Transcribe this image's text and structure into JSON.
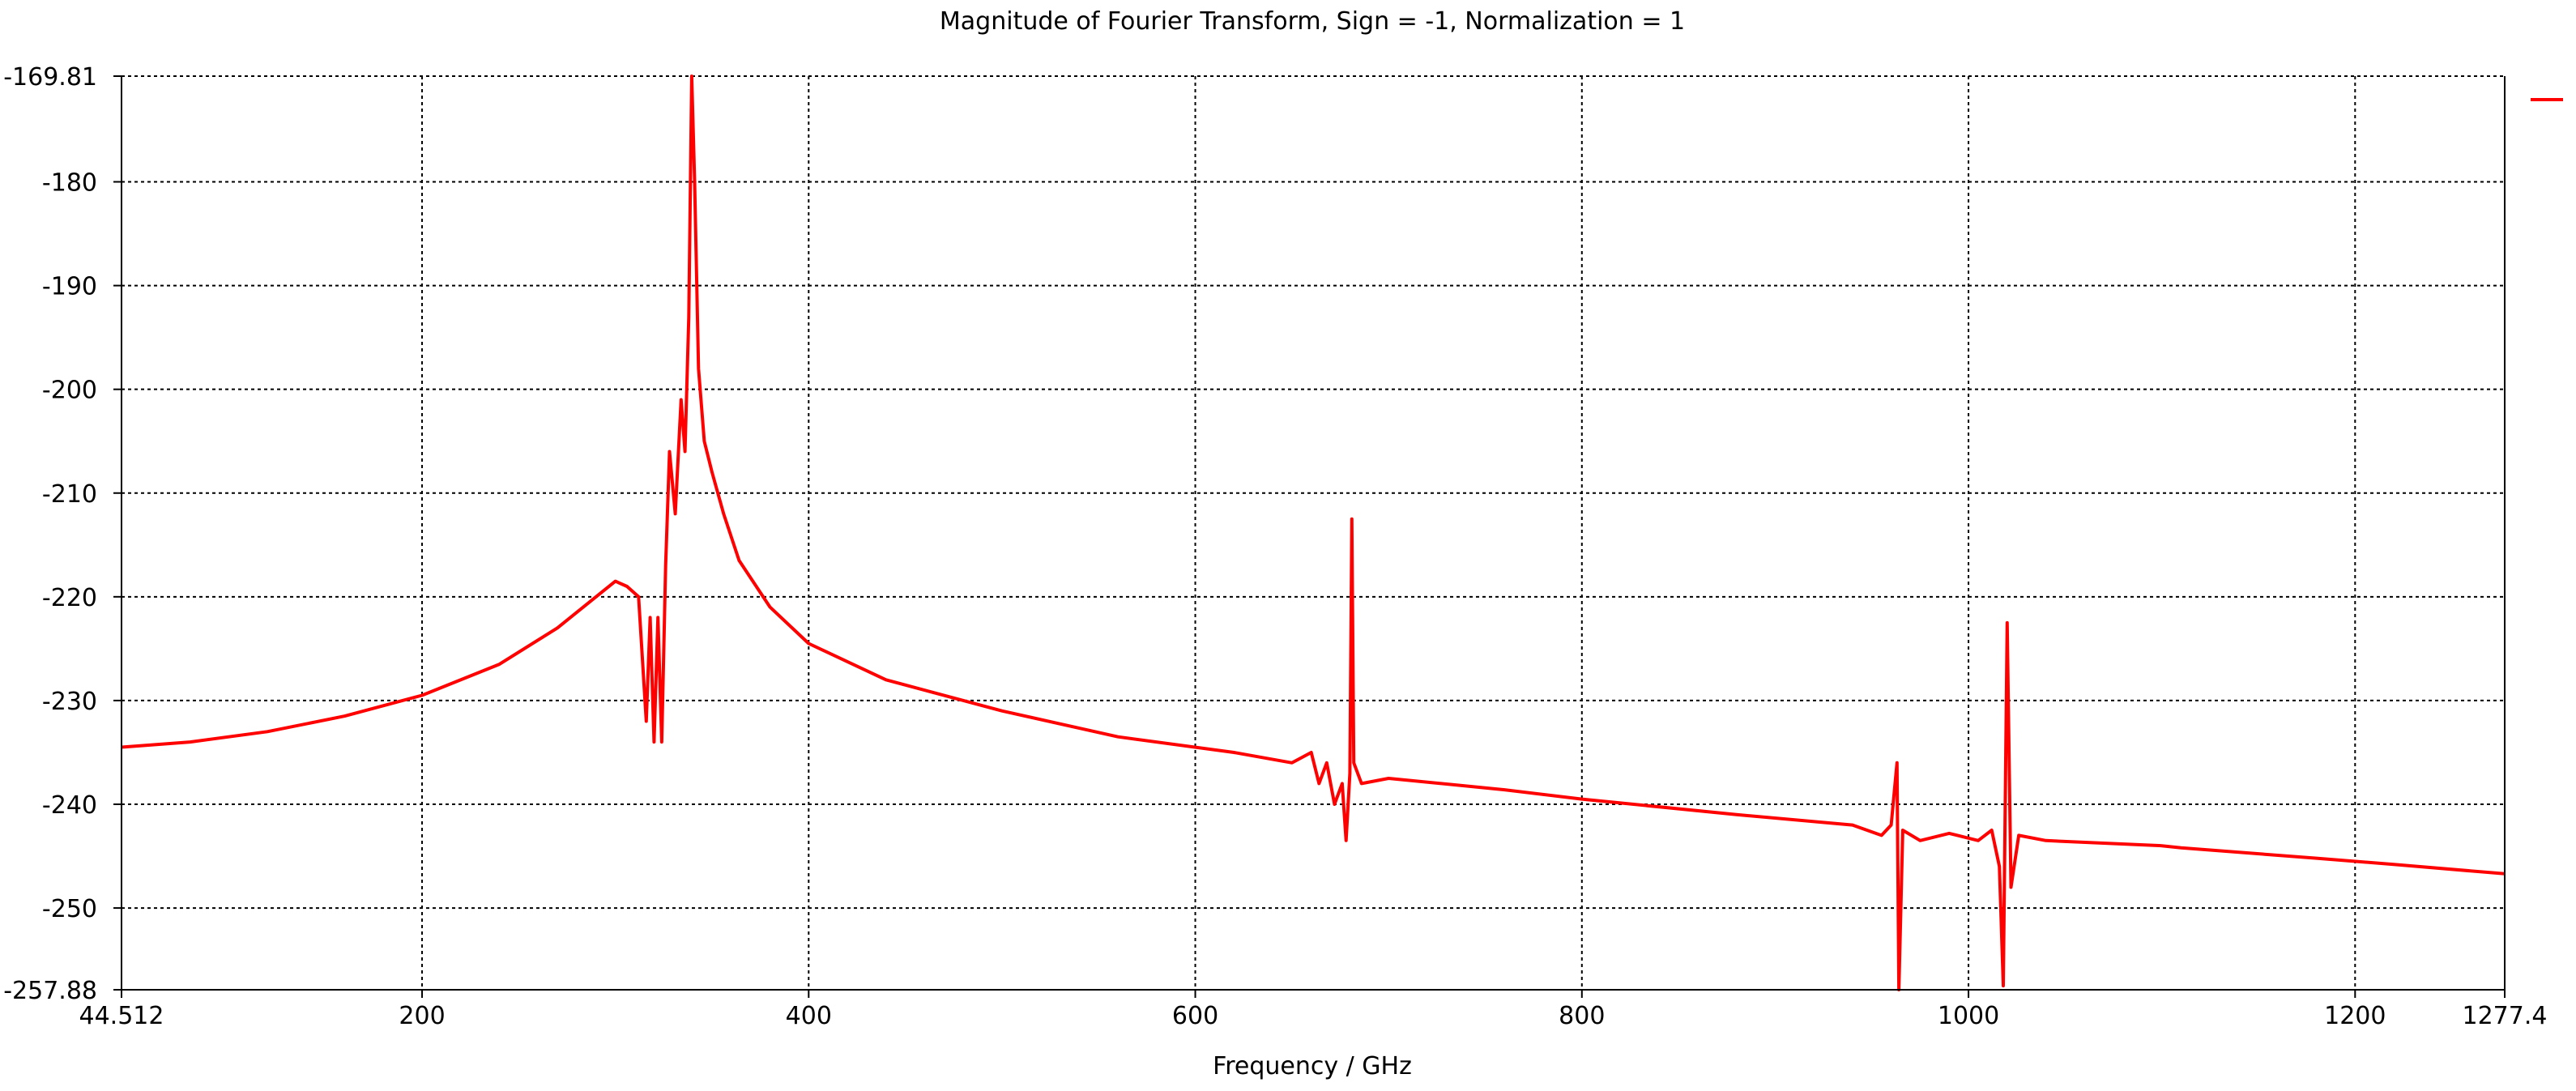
{
  "chart_data": {
    "type": "line",
    "title": "Magnitude of Fourier Transform, Sign = -1, Normalization = 1",
    "xlabel": "Frequency / GHz",
    "ylabel": "",
    "xlim": [
      44.512,
      1277.4
    ],
    "ylim": [
      -257.88,
      -169.81
    ],
    "x_ticks": [
      {
        "value": 44.512,
        "label": "44.512"
      },
      {
        "value": 200,
        "label": "200"
      },
      {
        "value": 400,
        "label": "400"
      },
      {
        "value": 600,
        "label": "600"
      },
      {
        "value": 800,
        "label": "800"
      },
      {
        "value": 1000,
        "label": "1000"
      },
      {
        "value": 1200,
        "label": "1200"
      },
      {
        "value": 1277.4,
        "label": "1277.4"
      }
    ],
    "y_ticks": [
      {
        "value": -169.81,
        "label": "-169.81"
      },
      {
        "value": -180,
        "label": "-180"
      },
      {
        "value": -190,
        "label": "-190"
      },
      {
        "value": -200,
        "label": "-200"
      },
      {
        "value": -210,
        "label": "-210"
      },
      {
        "value": -220,
        "label": "-220"
      },
      {
        "value": -230,
        "label": "-230"
      },
      {
        "value": -240,
        "label": "-240"
      },
      {
        "value": -250,
        "label": "-250"
      },
      {
        "value": -257.88,
        "label": "-257.88"
      }
    ],
    "grid": true,
    "legend": "top-right",
    "series": [
      {
        "color": "#ff0000",
        "points": [
          [
            44.5,
            -234.5
          ],
          [
            80,
            -234.0
          ],
          [
            120,
            -233.0
          ],
          [
            160,
            -231.5
          ],
          [
            200,
            -229.5
          ],
          [
            240,
            -226.5
          ],
          [
            270,
            -223.0
          ],
          [
            290,
            -220.0
          ],
          [
            300,
            -218.5
          ],
          [
            306,
            -219.0
          ],
          [
            312,
            -220.0
          ],
          [
            316,
            -232.0
          ],
          [
            318,
            -222.0
          ],
          [
            320,
            -234.0
          ],
          [
            322,
            -222.0
          ],
          [
            324,
            -234.0
          ],
          [
            326,
            -217.0
          ],
          [
            328,
            -206.0
          ],
          [
            331,
            -212.0
          ],
          [
            334,
            -201.0
          ],
          [
            336,
            -206.0
          ],
          [
            338,
            -193.0
          ],
          [
            339.5,
            -169.81
          ],
          [
            341,
            -180.0
          ],
          [
            343,
            -198.0
          ],
          [
            346,
            -205.0
          ],
          [
            350,
            -208.0
          ],
          [
            356,
            -212.0
          ],
          [
            364,
            -216.5
          ],
          [
            380,
            -221.0
          ],
          [
            400,
            -224.5
          ],
          [
            440,
            -228.0
          ],
          [
            500,
            -231.0
          ],
          [
            560,
            -233.5
          ],
          [
            620,
            -235.0
          ],
          [
            650,
            -236.0
          ],
          [
            660,
            -235.0
          ],
          [
            664,
            -238.0
          ],
          [
            668,
            -236.0
          ],
          [
            672,
            -240.0
          ],
          [
            676,
            -238.0
          ],
          [
            678,
            -243.5
          ],
          [
            680,
            -237.0
          ],
          [
            681,
            -212.5
          ],
          [
            682,
            -236.0
          ],
          [
            686,
            -238.0
          ],
          [
            700,
            -237.5
          ],
          [
            760,
            -238.6
          ],
          [
            800,
            -239.5
          ],
          [
            880,
            -241.0
          ],
          [
            940,
            -242.0
          ],
          [
            955,
            -243.0
          ],
          [
            960,
            -242.0
          ],
          [
            963,
            -236.0
          ],
          [
            964,
            -257.88
          ],
          [
            966,
            -242.5
          ],
          [
            975,
            -243.5
          ],
          [
            990,
            -242.8
          ],
          [
            1005,
            -243.5
          ],
          [
            1012,
            -242.5
          ],
          [
            1016,
            -246.0
          ],
          [
            1018,
            -257.5
          ],
          [
            1020,
            -222.5
          ],
          [
            1022,
            -248.0
          ],
          [
            1026,
            -243.0
          ],
          [
            1040,
            -243.5
          ],
          [
            1100,
            -244.0
          ],
          [
            1110,
            -244.2
          ],
          [
            1180,
            -245.2
          ],
          [
            1220,
            -245.8
          ],
          [
            1277.4,
            -246.7
          ]
        ]
      }
    ]
  }
}
